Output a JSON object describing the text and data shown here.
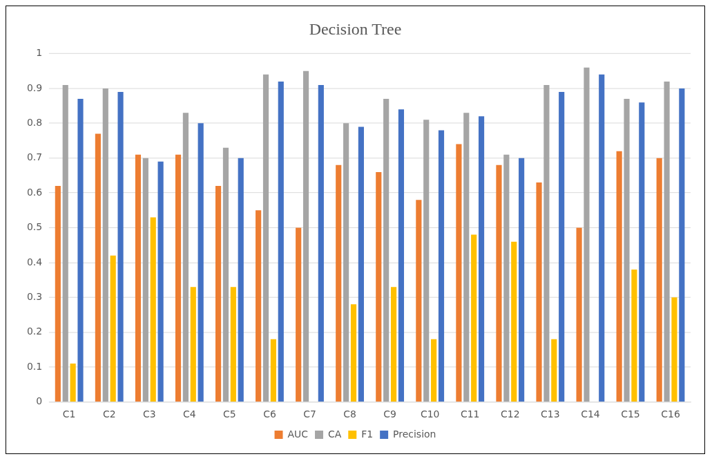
{
  "chart_data": {
    "type": "bar",
    "title": "Decision Tree",
    "categories": [
      "C1",
      "C2",
      "C3",
      "C4",
      "C5",
      "C6",
      "C7",
      "C8",
      "C9",
      "C10",
      "C11",
      "C12",
      "C13",
      "C14",
      "C15",
      "C16"
    ],
    "series": [
      {
        "name": "AUC",
        "color": "#ed7d31",
        "values": [
          0.62,
          0.77,
          0.71,
          0.71,
          0.62,
          0.55,
          0.5,
          0.68,
          0.66,
          0.58,
          0.74,
          0.68,
          0.63,
          0.5,
          0.72,
          0.7
        ]
      },
      {
        "name": "CA",
        "color": "#a5a5a5",
        "values": [
          0.91,
          0.9,
          0.7,
          0.83,
          0.73,
          0.94,
          0.95,
          0.8,
          0.87,
          0.81,
          0.83,
          0.71,
          0.91,
          0.96,
          0.87,
          0.92
        ]
      },
      {
        "name": "F1",
        "color": "#ffc000",
        "values": [
          0.11,
          0.42,
          0.53,
          0.33,
          0.33,
          0.18,
          0,
          0.28,
          0.33,
          0.18,
          0.48,
          0.46,
          0.18,
          0,
          0.38,
          0.3
        ]
      },
      {
        "name": "Precision",
        "color": "#4472c4",
        "values": [
          0.87,
          0.89,
          0.69,
          0.8,
          0.7,
          0.92,
          0.91,
          0.79,
          0.84,
          0.78,
          0.82,
          0.7,
          0.89,
          0.94,
          0.86,
          0.9
        ]
      }
    ],
    "ylim": [
      0,
      1
    ],
    "yticks": [
      0,
      0.1,
      0.2,
      0.3,
      0.4,
      0.5,
      0.6,
      0.7,
      0.8,
      0.9,
      1
    ],
    "grid": "y",
    "legend": "bottom"
  }
}
